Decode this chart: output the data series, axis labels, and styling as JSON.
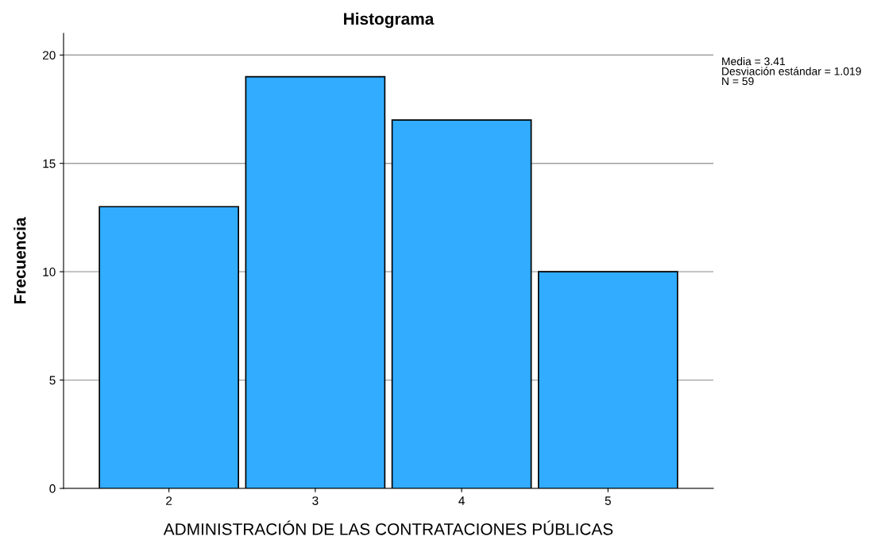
{
  "chart_data": {
    "type": "histogram",
    "title": "Histograma",
    "xlabel": "ADMINISTRACIÓN DE LAS CONTRATACIONES PÚBLICAS",
    "ylabel": "Frecuencia",
    "bins": [
      1.5,
      2.5,
      3.5,
      4.5,
      5.5
    ],
    "values": [
      13,
      19,
      17,
      10
    ],
    "color": "#31acff",
    "xlim": [
      1.28,
      5.72
    ],
    "xticks": [
      2,
      3,
      4,
      5
    ],
    "ylim": [
      0,
      21
    ],
    "yticks": [
      0,
      5,
      10,
      15,
      20
    ],
    "grid": "y",
    "annotations": [
      "Media = 3.41\nDesviación estándar = 1.019\nN = 59"
    ]
  }
}
